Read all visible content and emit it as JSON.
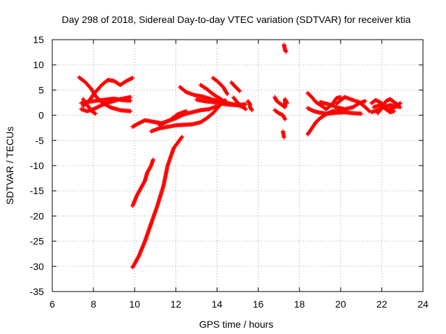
{
  "chart_data": {
    "type": "scatter",
    "title": "Day 298 of 2018, Sidereal Day-to-day VTEC variation (SDTVAR) for receiver ktia",
    "xlabel": "GPS time / hours",
    "ylabel": "SDTVAR / TECUs",
    "xlim": [
      6,
      24
    ],
    "ylim": [
      -35,
      15
    ],
    "xticks": [
      6,
      8,
      10,
      12,
      14,
      16,
      18,
      20,
      22,
      24
    ],
    "yticks": [
      -35,
      -30,
      -25,
      -20,
      -15,
      -10,
      -5,
      0,
      5,
      10,
      15
    ],
    "grid": true,
    "marker": "plus",
    "color": "#ff0000",
    "tracks": [
      [
        [
          7.3,
          7.5
        ],
        [
          7.6,
          6.6
        ],
        [
          7.9,
          5.2
        ],
        [
          8.1,
          3.8
        ],
        [
          8.4,
          2.6
        ],
        [
          8.8,
          1.6
        ],
        [
          9.3,
          1.0
        ],
        [
          9.8,
          0.8
        ]
      ],
      [
        [
          7.5,
          1.8
        ],
        [
          7.8,
          3.0
        ],
        [
          8.1,
          4.6
        ],
        [
          8.4,
          6.0
        ],
        [
          8.7,
          7.0
        ],
        [
          9.0,
          6.8
        ],
        [
          9.3,
          6.0
        ],
        [
          9.6,
          6.8
        ],
        [
          9.9,
          7.4
        ]
      ],
      [
        [
          7.4,
          2.4
        ],
        [
          7.8,
          2.7
        ],
        [
          8.2,
          2.9
        ],
        [
          8.6,
          3.1
        ],
        [
          9.0,
          3.3
        ],
        [
          9.4,
          3.0
        ],
        [
          9.8,
          2.9
        ]
      ],
      [
        [
          7.4,
          1.2
        ],
        [
          7.7,
          0.8
        ],
        [
          8.0,
          1.2
        ],
        [
          8.4,
          2.0
        ],
        [
          8.8,
          2.6
        ],
        [
          9.3,
          3.2
        ],
        [
          9.8,
          3.6
        ]
      ],
      [
        [
          7.5,
          3.2
        ],
        [
          7.7,
          2.0
        ],
        [
          7.9,
          0.9
        ],
        [
          8.1,
          0.3
        ]
      ],
      [
        [
          9.9,
          -30.2
        ],
        [
          10.2,
          -28.0
        ],
        [
          10.5,
          -25.0
        ],
        [
          10.8,
          -21.5
        ],
        [
          11.1,
          -18.0
        ],
        [
          11.4,
          -14.0
        ],
        [
          11.6,
          -10.0
        ],
        [
          11.9,
          -6.5
        ],
        [
          12.3,
          -4.3
        ]
      ],
      [
        [
          9.9,
          -18.0
        ],
        [
          10.1,
          -16.0
        ],
        [
          10.3,
          -14.5
        ],
        [
          10.5,
          -13.0
        ],
        [
          10.6,
          -11.5
        ],
        [
          10.8,
          -10.0
        ],
        [
          10.9,
          -8.8
        ]
      ],
      [
        [
          9.9,
          -2.3
        ],
        [
          10.2,
          -1.6
        ],
        [
          10.5,
          -1.0
        ],
        [
          10.9,
          -1.3
        ],
        [
          11.3,
          -1.6
        ],
        [
          11.7,
          -1.0
        ],
        [
          12.1,
          0.2
        ],
        [
          12.5,
          0.8
        ]
      ],
      [
        [
          10.8,
          -3.2
        ],
        [
          11.2,
          -2.6
        ],
        [
          11.6,
          -2.3
        ],
        [
          12.0,
          -2.0
        ],
        [
          12.4,
          -1.9
        ],
        [
          12.8,
          -1.8
        ],
        [
          13.2,
          -1.4
        ],
        [
          13.5,
          -0.6
        ],
        [
          13.8,
          0.4
        ],
        [
          14.1,
          1.8
        ],
        [
          14.4,
          3.0
        ]
      ],
      [
        [
          11.2,
          -2.0
        ],
        [
          11.6,
          -1.2
        ],
        [
          12.0,
          -0.6
        ],
        [
          12.4,
          0.2
        ],
        [
          12.8,
          0.6
        ],
        [
          13.2,
          1.0
        ],
        [
          13.6,
          1.2
        ],
        [
          14.0,
          1.8
        ]
      ],
      [
        [
          12.2,
          5.6
        ],
        [
          12.5,
          4.6
        ],
        [
          12.9,
          4.0
        ],
        [
          13.3,
          3.7
        ],
        [
          13.7,
          3.2
        ],
        [
          14.1,
          2.8
        ],
        [
          14.5,
          2.4
        ],
        [
          14.9,
          2.1
        ],
        [
          15.3,
          1.6
        ]
      ],
      [
        [
          13.0,
          3.1
        ],
        [
          13.4,
          2.8
        ],
        [
          13.8,
          2.6
        ],
        [
          14.2,
          2.3
        ],
        [
          14.6,
          2.1
        ],
        [
          15.0,
          2.0
        ],
        [
          15.4,
          2.2
        ]
      ],
      [
        [
          13.2,
          6.0
        ],
        [
          13.5,
          5.2
        ],
        [
          13.8,
          4.2
        ],
        [
          14.1,
          3.4
        ],
        [
          14.4,
          2.6
        ]
      ],
      [
        [
          13.8,
          7.4
        ],
        [
          14.0,
          6.8
        ],
        [
          14.3,
          5.6
        ],
        [
          14.5,
          4.2
        ]
      ],
      [
        [
          14.7,
          6.5
        ],
        [
          14.9,
          5.6
        ],
        [
          15.1,
          4.8
        ]
      ],
      [
        [
          14.8,
          3.5
        ],
        [
          15.0,
          2.5
        ],
        [
          15.2,
          1.8
        ],
        [
          15.4,
          1.2
        ]
      ],
      [
        [
          15.5,
          2.8
        ],
        [
          15.6,
          2.2
        ],
        [
          15.6,
          1.6
        ],
        [
          15.7,
          1.0
        ]
      ],
      [
        [
          16.8,
          3.6
        ],
        [
          16.9,
          2.8
        ],
        [
          17.1,
          2.2
        ],
        [
          17.3,
          1.6
        ],
        [
          17.3,
          3.2
        ],
        [
          17.4,
          2.4
        ]
      ],
      [
        [
          16.8,
          1.0
        ],
        [
          17.0,
          0.4
        ],
        [
          17.2,
          0.0
        ],
        [
          17.3,
          -0.8
        ]
      ],
      [
        [
          17.25,
          14.0
        ],
        [
          17.3,
          13.0
        ],
        [
          17.35,
          12.6
        ]
      ],
      [
        [
          17.2,
          -3.2
        ],
        [
          17.25,
          -4.4
        ]
      ],
      [
        [
          18.4,
          4.4
        ],
        [
          18.6,
          3.6
        ],
        [
          18.8,
          2.6
        ],
        [
          19.1,
          1.8
        ],
        [
          19.3,
          1.2
        ],
        [
          19.6,
          2.2
        ],
        [
          19.8,
          3.4
        ],
        [
          20.0,
          3.6
        ]
      ],
      [
        [
          18.4,
          -3.8
        ],
        [
          18.6,
          -2.6
        ],
        [
          18.8,
          -1.4
        ],
        [
          19.0,
          -0.6
        ],
        [
          19.3,
          0.2
        ],
        [
          19.6,
          0.8
        ],
        [
          20.0,
          0.9
        ]
      ],
      [
        [
          18.4,
          1.4
        ],
        [
          18.7,
          0.8
        ],
        [
          19.0,
          0.5
        ],
        [
          19.4,
          0.3
        ],
        [
          19.8,
          0.5
        ],
        [
          20.2,
          0.6
        ],
        [
          20.6,
          0.4
        ],
        [
          21.0,
          0.3
        ]
      ],
      [
        [
          19.0,
          2.6
        ],
        [
          19.4,
          2.2
        ],
        [
          19.8,
          1.6
        ],
        [
          20.2,
          1.2
        ],
        [
          20.6,
          1.6
        ],
        [
          20.9,
          2.4
        ],
        [
          21.2,
          2.8
        ]
      ],
      [
        [
          19.8,
          2.3
        ],
        [
          20.2,
          3.6
        ],
        [
          20.6,
          3.0
        ],
        [
          20.9,
          2.6
        ],
        [
          21.2,
          1.6
        ],
        [
          21.4,
          0.8
        ]
      ],
      [
        [
          21.5,
          0.6
        ],
        [
          21.8,
          1.0
        ],
        [
          22.1,
          1.6
        ],
        [
          22.4,
          2.0
        ],
        [
          22.7,
          1.8
        ],
        [
          22.9,
          1.6
        ]
      ],
      [
        [
          21.5,
          2.4
        ],
        [
          21.7,
          3.0
        ],
        [
          22.0,
          2.4
        ],
        [
          22.2,
          1.2
        ],
        [
          22.4,
          0.6
        ],
        [
          22.6,
          0.8
        ]
      ],
      [
        [
          21.8,
          0.4
        ],
        [
          22.0,
          1.4
        ],
        [
          22.2,
          2.8
        ],
        [
          22.4,
          3.2
        ],
        [
          22.6,
          2.6
        ],
        [
          22.8,
          2.0
        ]
      ],
      [
        [
          21.6,
          1.6
        ],
        [
          21.9,
          2.0
        ],
        [
          22.3,
          1.0
        ],
        [
          22.6,
          1.5
        ],
        [
          22.9,
          2.4
        ]
      ]
    ]
  }
}
